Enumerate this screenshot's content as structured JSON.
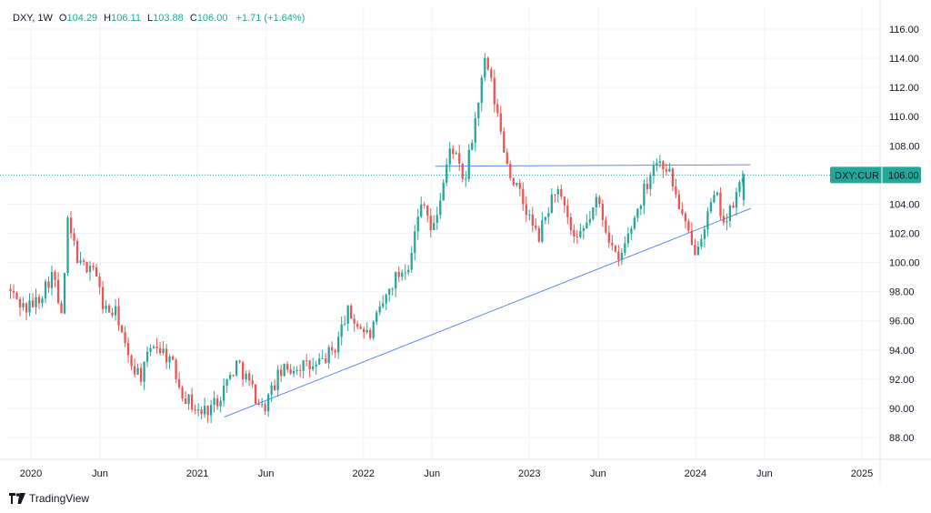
{
  "legend": {
    "symbol": "DXY",
    "interval": "1W",
    "open_label": "O",
    "open": "104.29",
    "high_label": "H",
    "high": "106.11",
    "low_label": "L",
    "low": "103.88",
    "close_label": "C",
    "close": "106.00",
    "change": "+1.71 (+1.64%)"
  },
  "brand": {
    "name": "TradingView"
  },
  "price_tag": {
    "label": "DXY:CUR",
    "value": "106.00"
  },
  "colors": {
    "up": "#26a69a",
    "down": "#ef5350",
    "trendline": "#5b8def",
    "grid": "#f0f3fa",
    "axis_text": "#131722",
    "last_price_line": "#26a69a"
  },
  "chart_data": {
    "type": "candlestick",
    "interval": "1W",
    "y_ticks": [
      "88.00",
      "90.00",
      "92.00",
      "94.00",
      "96.00",
      "98.00",
      "100.00",
      "102.00",
      "104.00",
      "106.00",
      "108.00",
      "110.00",
      "112.00",
      "114.00",
      "116.00"
    ],
    "ylim": [
      86.5,
      117.5
    ],
    "x_ticks": [
      {
        "label": "2020",
        "date": "2020-01-01"
      },
      {
        "label": "Jun",
        "date": "2020-06-01"
      },
      {
        "label": "2021",
        "date": "2021-01-01"
      },
      {
        "label": "Jun",
        "date": "2021-06-01"
      },
      {
        "label": "2022",
        "date": "2022-01-01"
      },
      {
        "label": "Jun",
        "date": "2022-06-01"
      },
      {
        "label": "2023",
        "date": "2023-01-01"
      },
      {
        "label": "Jun",
        "date": "2023-06-01"
      },
      {
        "label": "2024",
        "date": "2024-01-01"
      },
      {
        "label": "Jun",
        "date": "2024-06-01"
      },
      {
        "label": "2025",
        "date": "2025-01-01"
      }
    ],
    "xlim": [
      "2019-11-10",
      "2025-02-10"
    ],
    "close_path": [
      [
        "2019-11-10",
        98.2
      ],
      [
        "2019-12-20",
        96.8
      ],
      [
        "2020-01-15",
        97.4
      ],
      [
        "2020-02-18",
        99.3
      ],
      [
        "2020-03-10",
        95.8
      ],
      [
        "2020-03-20",
        102.8
      ],
      [
        "2020-04-20",
        99.6
      ],
      [
        "2020-05-15",
        100.0
      ],
      [
        "2020-06-10",
        96.8
      ],
      [
        "2020-07-10",
        96.4
      ],
      [
        "2020-07-31",
        93.4
      ],
      [
        "2020-09-01",
        92.2
      ],
      [
        "2020-09-25",
        94.6
      ],
      [
        "2020-11-01",
        93.4
      ],
      [
        "2020-12-01",
        91.0
      ],
      [
        "2021-01-06",
        89.6
      ],
      [
        "2021-02-10",
        90.4
      ],
      [
        "2021-03-31",
        93.2
      ],
      [
        "2021-05-25",
        89.9
      ],
      [
        "2021-07-01",
        92.4
      ],
      [
        "2021-08-15",
        93.0
      ],
      [
        "2021-09-15",
        92.7
      ],
      [
        "2021-11-01",
        94.2
      ],
      [
        "2021-11-25",
        96.6
      ],
      [
        "2022-01-14",
        94.9
      ],
      [
        "2022-03-07",
        98.7
      ],
      [
        "2022-04-10",
        100.0
      ],
      [
        "2022-05-13",
        104.7
      ],
      [
        "2022-06-01",
        101.8
      ],
      [
        "2022-07-14",
        108.2
      ],
      [
        "2022-08-10",
        105.2
      ],
      [
        "2022-09-27",
        114.0
      ],
      [
        "2022-11-15",
        106.5
      ],
      [
        "2023-01-20",
        101.6
      ],
      [
        "2023-02-28",
        105.2
      ],
      [
        "2023-04-14",
        101.1
      ],
      [
        "2023-05-31",
        104.3
      ],
      [
        "2023-07-14",
        99.8
      ],
      [
        "2023-10-03",
        107.0
      ],
      [
        "2023-10-31",
        106.6
      ],
      [
        "2023-12-27",
        100.7
      ],
      [
        "2024-02-14",
        104.6
      ],
      [
        "2024-03-08",
        102.6
      ],
      [
        "2024-04-16",
        106.0
      ]
    ],
    "trendlines": [
      {
        "name": "",
        "points": [
          [
            "2021-03-01",
            89.4
          ],
          [
            "2024-05-01",
            103.7
          ]
        ]
      },
      {
        "name": "",
        "points": [
          [
            "2022-06-08",
            106.6
          ],
          [
            "2024-05-01",
            106.7
          ]
        ]
      }
    ],
    "last_price": 106.0,
    "last_candle": {
      "date": "2024-04-16",
      "open": 104.29,
      "high": 106.11,
      "low": 103.88,
      "close": 106.0
    }
  }
}
